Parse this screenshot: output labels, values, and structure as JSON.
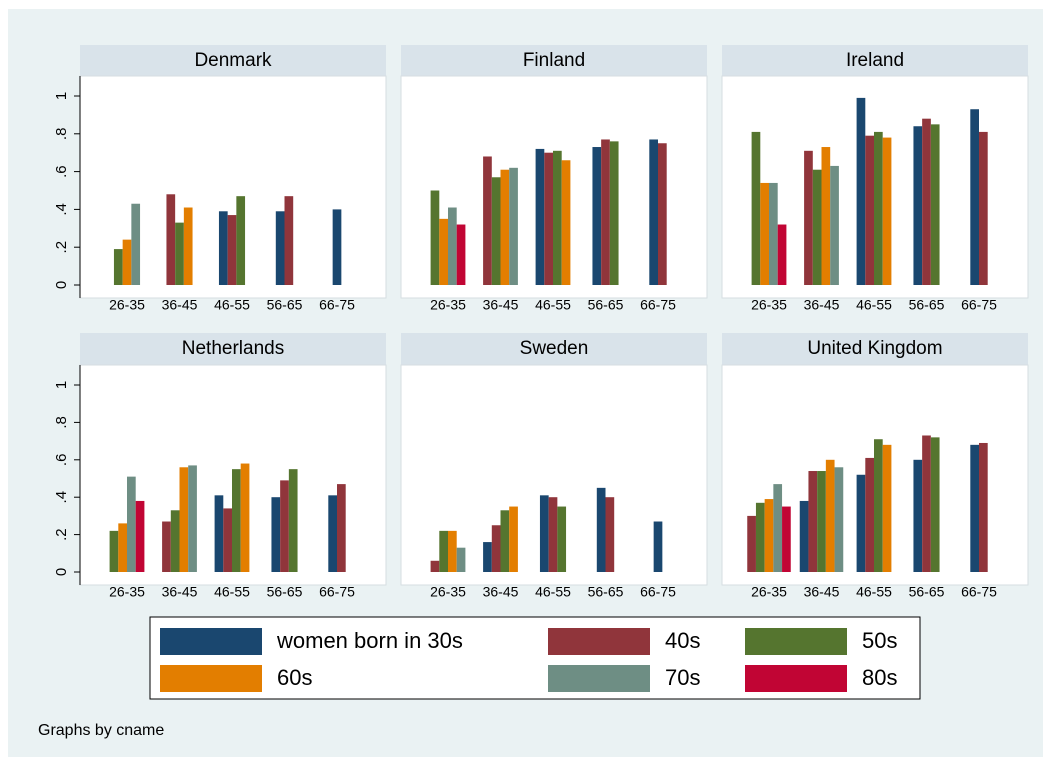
{
  "chart_data": [
    {
      "type": "bar",
      "title": "Denmark",
      "categories": [
        "26-35",
        "36-45",
        "46-55",
        "56-65",
        "66-75"
      ],
      "series": [
        {
          "name": "women born in 30s",
          "color": "#1a476f",
          "values": [
            null,
            null,
            0.39,
            0.39,
            0.4
          ]
        },
        {
          "name": "40s",
          "color": "#90353b",
          "values": [
            null,
            0.48,
            0.37,
            0.47,
            null
          ]
        },
        {
          "name": "50s",
          "color": "#55752f",
          "values": [
            0.19,
            0.33,
            0.47,
            null,
            null
          ]
        },
        {
          "name": "60s",
          "color": "#e37e00",
          "values": [
            0.24,
            0.41,
            null,
            null,
            null
          ]
        },
        {
          "name": "70s",
          "color": "#6e8e84",
          "values": [
            0.43,
            null,
            null,
            null,
            null
          ]
        },
        {
          "name": "80s",
          "color": "#c10534",
          "values": [
            null,
            null,
            null,
            null,
            null
          ]
        }
      ],
      "ylim": [
        0,
        1
      ],
      "yticks": [
        0,
        {
          "value": 0.2,
          "label": ".2"
        },
        {
          "value": 0.4,
          "label": ".4"
        },
        {
          "value": 0.6,
          "label": ".6"
        },
        {
          "value": 0.8,
          "label": ".8"
        },
        1
      ]
    },
    {
      "type": "bar",
      "title": "Finland",
      "categories": [
        "26-35",
        "36-45",
        "46-55",
        "56-65",
        "66-75"
      ],
      "series": [
        {
          "name": "women born in 30s",
          "color": "#1a476f",
          "values": [
            null,
            null,
            0.72,
            0.73,
            0.77
          ]
        },
        {
          "name": "40s",
          "color": "#90353b",
          "values": [
            null,
            0.68,
            0.7,
            0.77,
            0.75
          ]
        },
        {
          "name": "50s",
          "color": "#55752f",
          "values": [
            0.5,
            0.57,
            0.71,
            0.76,
            null
          ]
        },
        {
          "name": "60s",
          "color": "#e37e00",
          "values": [
            0.35,
            0.61,
            0.66,
            null,
            null
          ]
        },
        {
          "name": "70s",
          "color": "#6e8e84",
          "values": [
            0.41,
            0.62,
            null,
            null,
            null
          ]
        },
        {
          "name": "80s",
          "color": "#c10534",
          "values": [
            0.32,
            null,
            null,
            null,
            null
          ]
        }
      ],
      "ylim": [
        0,
        1
      ],
      "yticks": [
        0,
        {
          "value": 0.2,
          "label": ".2"
        },
        {
          "value": 0.4,
          "label": ".4"
        },
        {
          "value": 0.6,
          "label": ".6"
        },
        {
          "value": 0.8,
          "label": ".8"
        },
        1
      ]
    },
    {
      "type": "bar",
      "title": "Ireland",
      "categories": [
        "26-35",
        "36-45",
        "46-55",
        "56-65",
        "66-75"
      ],
      "series": [
        {
          "name": "women born in 30s",
          "color": "#1a476f",
          "values": [
            null,
            null,
            0.99,
            0.84,
            0.93
          ]
        },
        {
          "name": "40s",
          "color": "#90353b",
          "values": [
            null,
            0.71,
            0.79,
            0.88,
            0.81
          ]
        },
        {
          "name": "50s",
          "color": "#55752f",
          "values": [
            0.81,
            0.61,
            0.81,
            0.85,
            null
          ]
        },
        {
          "name": "60s",
          "color": "#e37e00",
          "values": [
            0.54,
            0.73,
            0.78,
            null,
            null
          ]
        },
        {
          "name": "70s",
          "color": "#6e8e84",
          "values": [
            0.54,
            0.63,
            null,
            null,
            null
          ]
        },
        {
          "name": "80s",
          "color": "#c10534",
          "values": [
            0.32,
            null,
            null,
            null,
            null
          ]
        }
      ],
      "ylim": [
        0,
        1
      ],
      "yticks": [
        0,
        {
          "value": 0.2,
          "label": ".2"
        },
        {
          "value": 0.4,
          "label": ".4"
        },
        {
          "value": 0.6,
          "label": ".6"
        },
        {
          "value": 0.8,
          "label": ".8"
        },
        1
      ]
    },
    {
      "type": "bar",
      "title": "Netherlands",
      "categories": [
        "26-35",
        "36-45",
        "46-55",
        "56-65",
        "66-75"
      ],
      "series": [
        {
          "name": "women born in 30s",
          "color": "#1a476f",
          "values": [
            null,
            null,
            0.41,
            0.4,
            0.41
          ]
        },
        {
          "name": "40s",
          "color": "#90353b",
          "values": [
            null,
            0.27,
            0.34,
            0.49,
            0.47
          ]
        },
        {
          "name": "50s",
          "color": "#55752f",
          "values": [
            0.22,
            0.33,
            0.55,
            0.55,
            null
          ]
        },
        {
          "name": "60s",
          "color": "#e37e00",
          "values": [
            0.26,
            0.56,
            0.58,
            null,
            null
          ]
        },
        {
          "name": "70s",
          "color": "#6e8e84",
          "values": [
            0.51,
            0.57,
            null,
            null,
            null
          ]
        },
        {
          "name": "80s",
          "color": "#c10534",
          "values": [
            0.38,
            null,
            null,
            null,
            null
          ]
        }
      ],
      "ylim": [
        0,
        1
      ],
      "yticks": [
        0,
        {
          "value": 0.2,
          "label": ".2"
        },
        {
          "value": 0.4,
          "label": ".4"
        },
        {
          "value": 0.6,
          "label": ".6"
        },
        {
          "value": 0.8,
          "label": ".8"
        },
        1
      ]
    },
    {
      "type": "bar",
      "title": "Sweden",
      "categories": [
        "26-35",
        "36-45",
        "46-55",
        "56-65",
        "66-75"
      ],
      "series": [
        {
          "name": "women born in 30s",
          "color": "#1a476f",
          "values": [
            null,
            0.16,
            0.41,
            0.45,
            0.27
          ]
        },
        {
          "name": "40s",
          "color": "#90353b",
          "values": [
            0.06,
            0.25,
            0.4,
            0.4,
            null
          ]
        },
        {
          "name": "50s",
          "color": "#55752f",
          "values": [
            0.22,
            0.33,
            0.35,
            null,
            null
          ]
        },
        {
          "name": "60s",
          "color": "#e37e00",
          "values": [
            0.22,
            0.35,
            null,
            null,
            null
          ]
        },
        {
          "name": "70s",
          "color": "#6e8e84",
          "values": [
            0.13,
            null,
            null,
            null,
            null
          ]
        },
        {
          "name": "80s",
          "color": "#c10534",
          "values": [
            null,
            null,
            null,
            null,
            null
          ]
        }
      ],
      "ylim": [
        0,
        1
      ],
      "yticks": [
        0,
        {
          "value": 0.2,
          "label": ".2"
        },
        {
          "value": 0.4,
          "label": ".4"
        },
        {
          "value": 0.6,
          "label": ".6"
        },
        {
          "value": 0.8,
          "label": ".8"
        },
        1
      ]
    },
    {
      "type": "bar",
      "title": "United Kingdom",
      "categories": [
        "26-35",
        "36-45",
        "46-55",
        "56-65",
        "66-75"
      ],
      "series": [
        {
          "name": "women born in 30s",
          "color": "#1a476f",
          "values": [
            null,
            0.38,
            0.52,
            0.6,
            0.68
          ]
        },
        {
          "name": "40s",
          "color": "#90353b",
          "values": [
            0.3,
            0.54,
            0.61,
            0.73,
            0.69
          ]
        },
        {
          "name": "50s",
          "color": "#55752f",
          "values": [
            0.37,
            0.54,
            0.71,
            0.72,
            null
          ]
        },
        {
          "name": "60s",
          "color": "#e37e00",
          "values": [
            0.39,
            0.6,
            0.68,
            null,
            null
          ]
        },
        {
          "name": "70s",
          "color": "#6e8e84",
          "values": [
            0.47,
            0.56,
            null,
            null,
            null
          ]
        },
        {
          "name": "80s",
          "color": "#c10534",
          "values": [
            0.35,
            null,
            null,
            null,
            null
          ]
        }
      ],
      "ylim": [
        0,
        1
      ],
      "yticks": [
        0,
        {
          "value": 0.2,
          "label": ".2"
        },
        {
          "value": 0.4,
          "label": ".4"
        },
        {
          "value": 0.6,
          "label": ".6"
        },
        {
          "value": 0.8,
          "label": ".8"
        },
        1
      ]
    }
  ],
  "note": "Graphs by cname"
}
